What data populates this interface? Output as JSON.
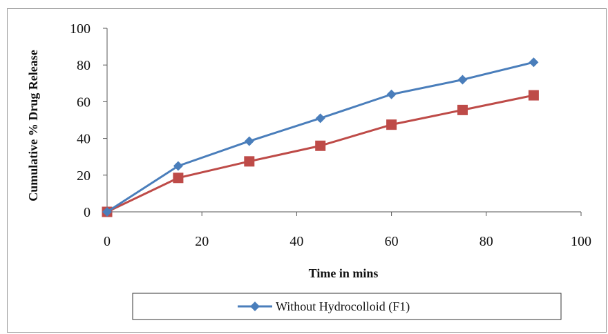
{
  "chart_data": {
    "type": "line",
    "title": "",
    "xlabel": "Time in mins",
    "ylabel": "Cumulative % Drug Release",
    "xlim": [
      0,
      100
    ],
    "ylim": [
      0,
      100
    ],
    "xticks": [
      0,
      20,
      40,
      60,
      80,
      100
    ],
    "yticks": [
      0,
      20,
      40,
      60,
      80,
      100
    ],
    "grid": false,
    "legend_position": "bottom",
    "series": [
      {
        "name": "Without Hydrocolloid (F1)",
        "color": "#4a7ebb",
        "marker": "diamond",
        "x": [
          0,
          15,
          30,
          45,
          60,
          75,
          90
        ],
        "y": [
          0,
          25,
          38.5,
          51,
          64,
          72,
          81.5
        ]
      },
      {
        "color": "#be4b48",
        "marker": "square",
        "x": [
          0,
          15,
          30,
          45,
          60,
          75,
          90
        ],
        "y": [
          0,
          18.5,
          27.5,
          36,
          47.5,
          55.5,
          63.5
        ]
      }
    ]
  }
}
